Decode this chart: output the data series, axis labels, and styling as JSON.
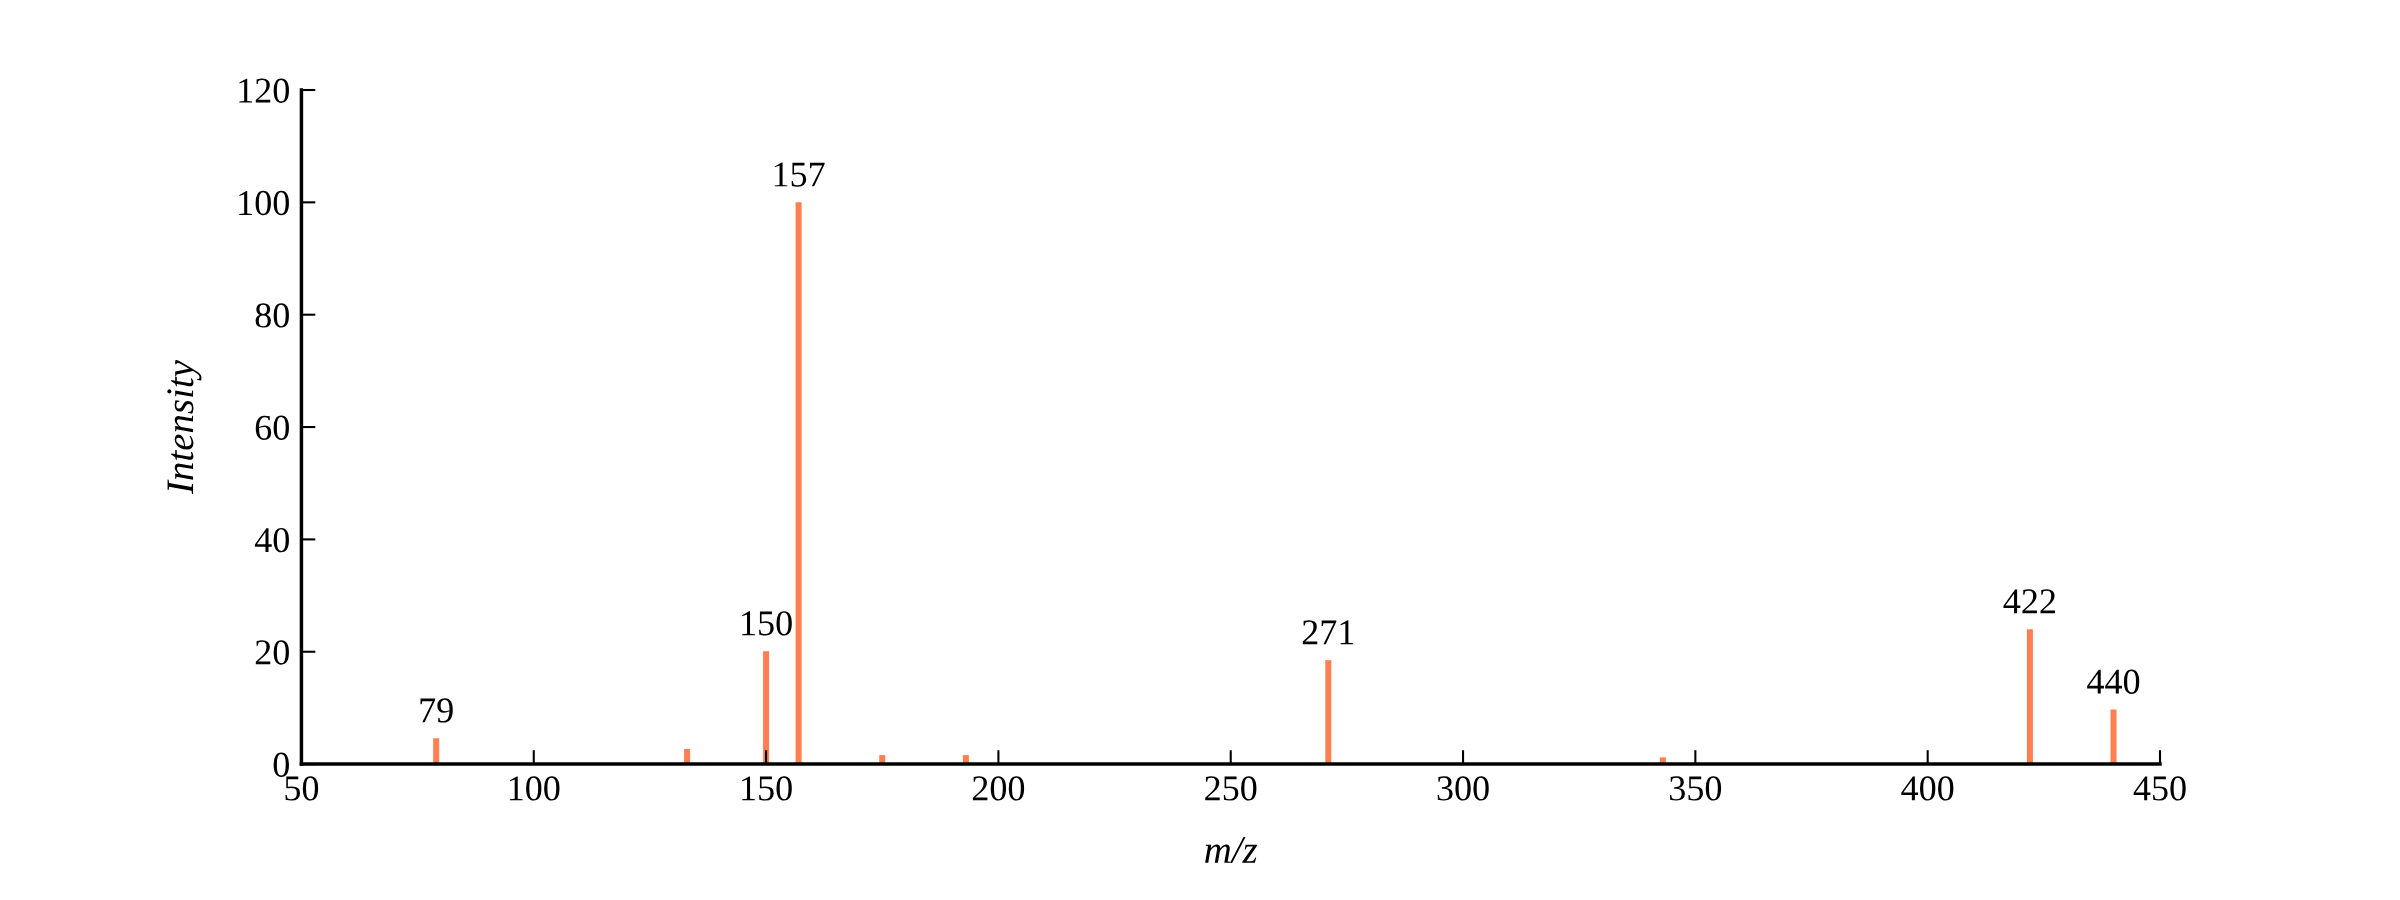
{
  "chart_data": {
    "type": "bar",
    "xlabel": "m/z",
    "ylabel": "Intensity",
    "x": [
      79,
      133,
      150,
      157,
      175,
      193,
      271,
      343,
      422,
      440
    ],
    "values": [
      4.6,
      2.7,
      20.1,
      100,
      1.6,
      1.6,
      18.5,
      1.2,
      24,
      9.7
    ],
    "color": "#ff7f50",
    "xlim": [
      50,
      450
    ],
    "xticks": [
      50,
      100,
      150,
      200,
      250,
      300,
      350,
      400,
      450
    ],
    "ylim": [
      0,
      120
    ],
    "yticks": [
      0,
      20,
      40,
      60,
      80,
      100,
      120
    ],
    "grid": false,
    "legend": false,
    "annotations": [
      {
        "text": "79",
        "x": 79,
        "y": 4.6
      },
      {
        "text": "150",
        "x": 150,
        "y": 20.1
      },
      {
        "text": "157",
        "x": 157,
        "y": 100
      },
      {
        "text": "271",
        "x": 271,
        "y": 18.5
      },
      {
        "text": "422",
        "x": 422,
        "y": 24
      },
      {
        "text": "440",
        "x": 440,
        "y": 9.7
      }
    ]
  }
}
